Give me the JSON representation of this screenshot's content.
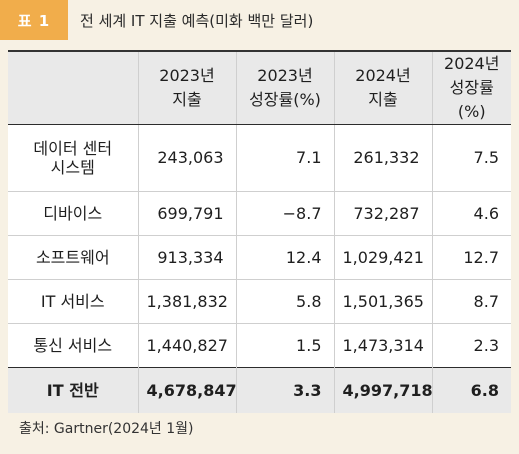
{
  "title": {
    "badge": "표 1",
    "text": "전 세계 IT 지출 예측(미화 백만 달러)"
  },
  "table": {
    "headers": [
      "",
      "2023년\n지출",
      "2023년\n성장률(%)",
      "2024년\n지출",
      "2024년\n성장률(%)"
    ],
    "rows": [
      {
        "label": "데이터 센터\n시스템",
        "spend_2023": "243,063",
        "growth_2023": "7.1",
        "spend_2024": "261,332",
        "growth_2024": "7.5"
      },
      {
        "label": "디바이스",
        "spend_2023": "699,791",
        "growth_2023": "−8.7",
        "spend_2024": "732,287",
        "growth_2024": "4.6"
      },
      {
        "label": "소프트웨어",
        "spend_2023": "913,334",
        "growth_2023": "12.4",
        "spend_2024": "1,029,421",
        "growth_2024": "12.7"
      },
      {
        "label": "IT 서비스",
        "spend_2023": "1,381,832",
        "growth_2023": "5.8",
        "spend_2024": "1,501,365",
        "growth_2024": "8.7"
      },
      {
        "label": "통신 서비스",
        "spend_2023": "1,440,827",
        "growth_2023": "1.5",
        "spend_2024": "1,473,314",
        "growth_2024": "2.3"
      }
    ],
    "total": {
      "label": "IT 전반",
      "spend_2023": "4,678,847",
      "growth_2023": "3.3",
      "spend_2024": "4,997,718",
      "growth_2024": "6.8"
    }
  },
  "source": "출처: Gartner(2024년 1월)",
  "colors": {
    "badge_bg": "#f1ad4b",
    "page_bg": "#f7f1e4",
    "header_bg": "#e9e9e9"
  }
}
